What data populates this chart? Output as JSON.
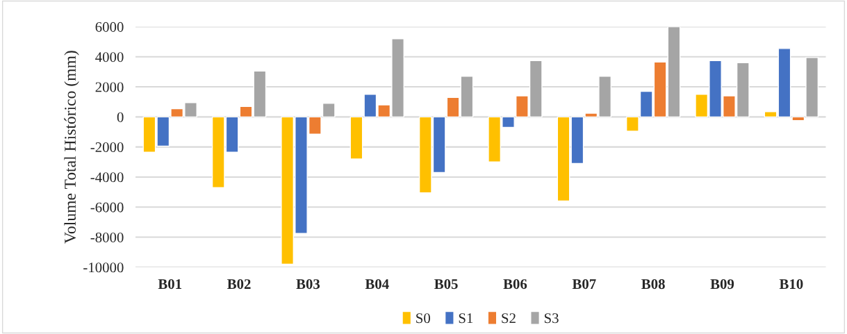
{
  "chart_data": {
    "type": "bar",
    "ylabel": "Volume Total Histórico (mm)",
    "categories": [
      "B01",
      "B02",
      "B03",
      "B04",
      "B05",
      "B06",
      "B07",
      "B08",
      "B09",
      "B10"
    ],
    "series": [
      {
        "name": "S0",
        "color": "#ffc000",
        "values": [
          -2350,
          -4700,
          -9800,
          -2800,
          -5050,
          -3000,
          -5600,
          -950,
          1500,
          350
        ]
      },
      {
        "name": "S1",
        "color": "#4472c4",
        "values": [
          -1950,
          -2350,
          -7750,
          1500,
          -3700,
          -700,
          -3100,
          1700,
          3750,
          4550
        ]
      },
      {
        "name": "S2",
        "color": "#ed7d31",
        "values": [
          550,
          700,
          -1150,
          800,
          1300,
          1400,
          250,
          3650,
          1400,
          -250
        ]
      },
      {
        "name": "S3",
        "color": "#a5a5a5",
        "values": [
          950,
          3050,
          900,
          5200,
          2700,
          3750,
          2700,
          6000,
          3600,
          3950
        ]
      }
    ],
    "ylim": [
      -10000,
      6000
    ],
    "yticks": [
      -10000,
      -8000,
      -6000,
      -4000,
      -2000,
      0,
      2000,
      4000,
      6000
    ],
    "grid": "y",
    "legend": "bottom"
  }
}
